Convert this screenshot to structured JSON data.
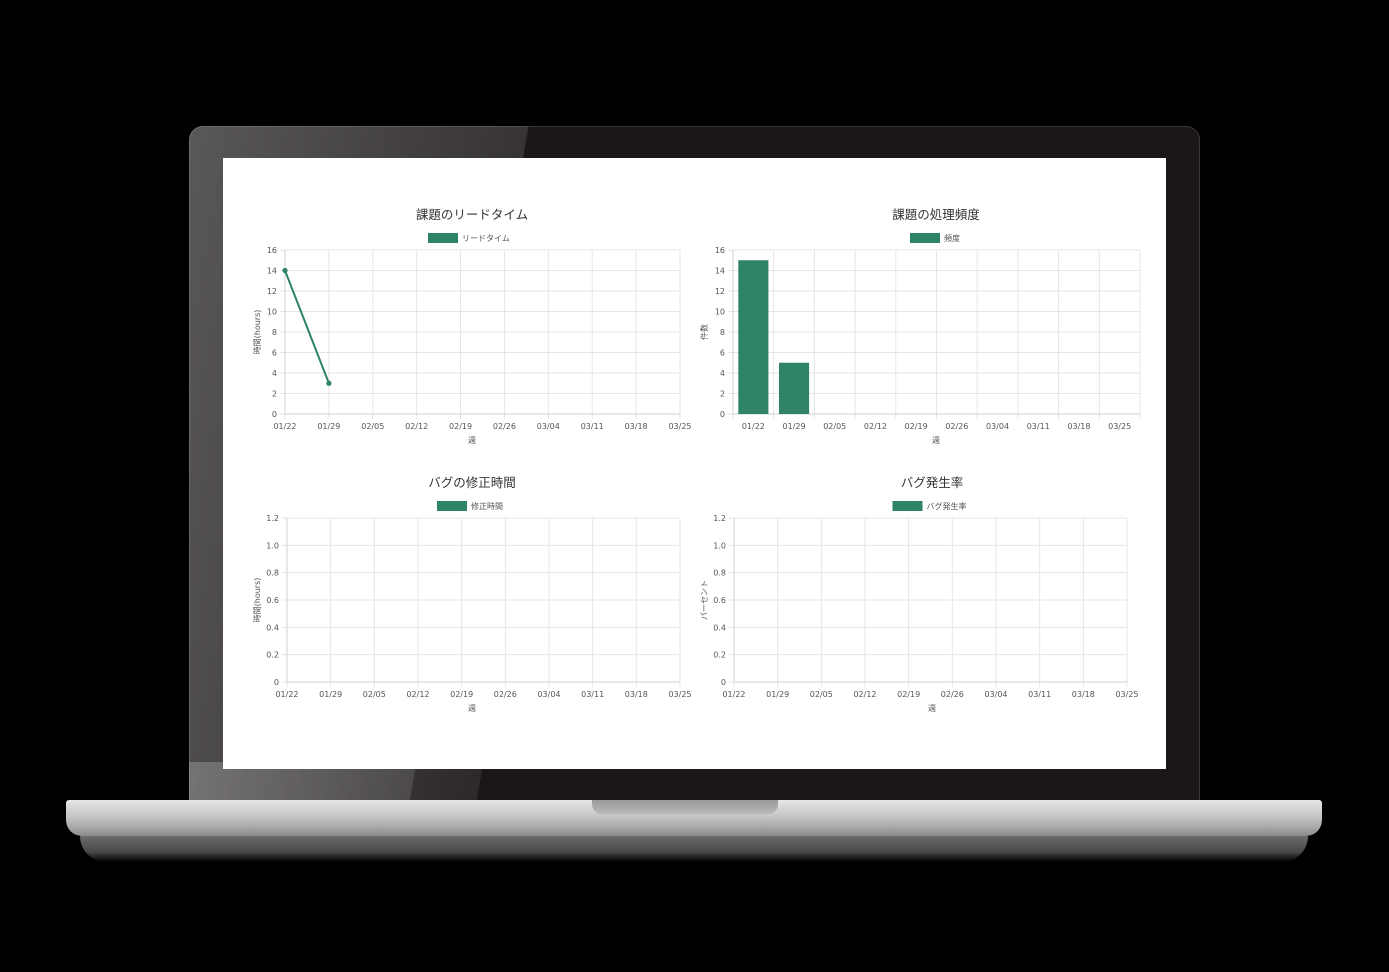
{
  "colors": {
    "accent": "#2e8369",
    "grid": "#e6e6e6",
    "text": "#555555",
    "title": "#333333"
  },
  "chart_data": [
    {
      "type": "line",
      "title": "課題のリードタイム",
      "legend": "リードタイム",
      "xlabel": "週",
      "ylabel": "時間(hours)",
      "categories": [
        "01/22",
        "01/29",
        "02/05",
        "02/12",
        "02/19",
        "02/26",
        "03/04",
        "03/11",
        "03/18",
        "03/25"
      ],
      "values": [
        14,
        3,
        null,
        null,
        null,
        null,
        null,
        null,
        null,
        null
      ],
      "yticks": [
        "0",
        "2",
        "4",
        "6",
        "8",
        "10",
        "12",
        "14",
        "16"
      ],
      "ylim": [
        0,
        16
      ]
    },
    {
      "type": "bar",
      "title": "課題の処理頻度",
      "legend": "頻度",
      "xlabel": "週",
      "ylabel": "件数",
      "categories": [
        "01/22",
        "01/29",
        "02/05",
        "02/12",
        "02/19",
        "02/26",
        "03/04",
        "03/11",
        "03/18",
        "03/25"
      ],
      "values": [
        15,
        5,
        null,
        null,
        null,
        null,
        null,
        null,
        null,
        null
      ],
      "yticks": [
        "0",
        "2",
        "4",
        "6",
        "8",
        "10",
        "12",
        "14",
        "16"
      ],
      "ylim": [
        0,
        16
      ]
    },
    {
      "type": "line",
      "title": "バグの修正時間",
      "legend": "修正時間",
      "xlabel": "週",
      "ylabel": "時間(hours)",
      "categories": [
        "01/22",
        "01/29",
        "02/05",
        "02/12",
        "02/19",
        "02/26",
        "03/04",
        "03/11",
        "03/18",
        "03/25"
      ],
      "values": [
        null,
        null,
        null,
        null,
        null,
        null,
        null,
        null,
        null,
        null
      ],
      "yticks": [
        "0",
        "0.2",
        "0.4",
        "0.6",
        "0.8",
        "1.0",
        "1.2"
      ],
      "ylim": [
        0,
        1.2
      ]
    },
    {
      "type": "line",
      "title": "バグ発生率",
      "legend": "バグ発生率",
      "xlabel": "週",
      "ylabel": "パーセント",
      "categories": [
        "01/22",
        "01/29",
        "02/05",
        "02/12",
        "02/19",
        "02/26",
        "03/04",
        "03/11",
        "03/18",
        "03/25"
      ],
      "values": [
        null,
        null,
        null,
        null,
        null,
        null,
        null,
        null,
        null,
        null
      ],
      "yticks": [
        "0",
        "0.2",
        "0.4",
        "0.6",
        "0.8",
        "1.0",
        "1.2"
      ],
      "ylim": [
        0,
        1.2
      ]
    }
  ]
}
